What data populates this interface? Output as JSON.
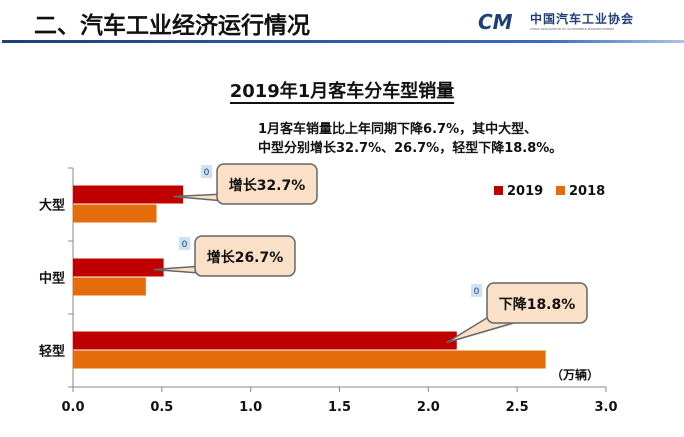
{
  "header": {
    "title": "二、汽车工业经济运行情况",
    "logo_mark": "CM",
    "logo_cn": "中国汽车工业协会",
    "logo_en": "CHINA ASSOCIATION OF AUTOMOBILE MANUFACTURERS"
  },
  "colors": {
    "2019": "#c00000",
    "2018": "#e46c0a",
    "callout_bg": "#fbe0c8"
  },
  "chart_data": {
    "type": "bar",
    "orientation": "horizontal",
    "title": "2019年1月客车分车型销量",
    "annotation": [
      "1月客车销量比上年同期下降6.7%，其中大型、",
      "中型分别增长32.7%、26.7%，轻型下降18.8%。"
    ],
    "unit_label": "（万辆）",
    "categories": [
      "大型",
      "中型",
      "轻型"
    ],
    "series": [
      {
        "name": "2019",
        "values": [
          0.62,
          0.51,
          2.16
        ]
      },
      {
        "name": "2018",
        "values": [
          0.47,
          0.41,
          2.66
        ]
      }
    ],
    "callouts": [
      "增长32.7%",
      "增长26.7%",
      "下降18.8%"
    ],
    "zero_labels": [
      "0",
      "0",
      "0"
    ],
    "xlim": [
      0,
      3.0
    ],
    "xticks": [
      "0.0",
      "0.5",
      "1.0",
      "1.5",
      "2.0",
      "2.5",
      "3.0"
    ],
    "grid": false,
    "legend": "right"
  }
}
